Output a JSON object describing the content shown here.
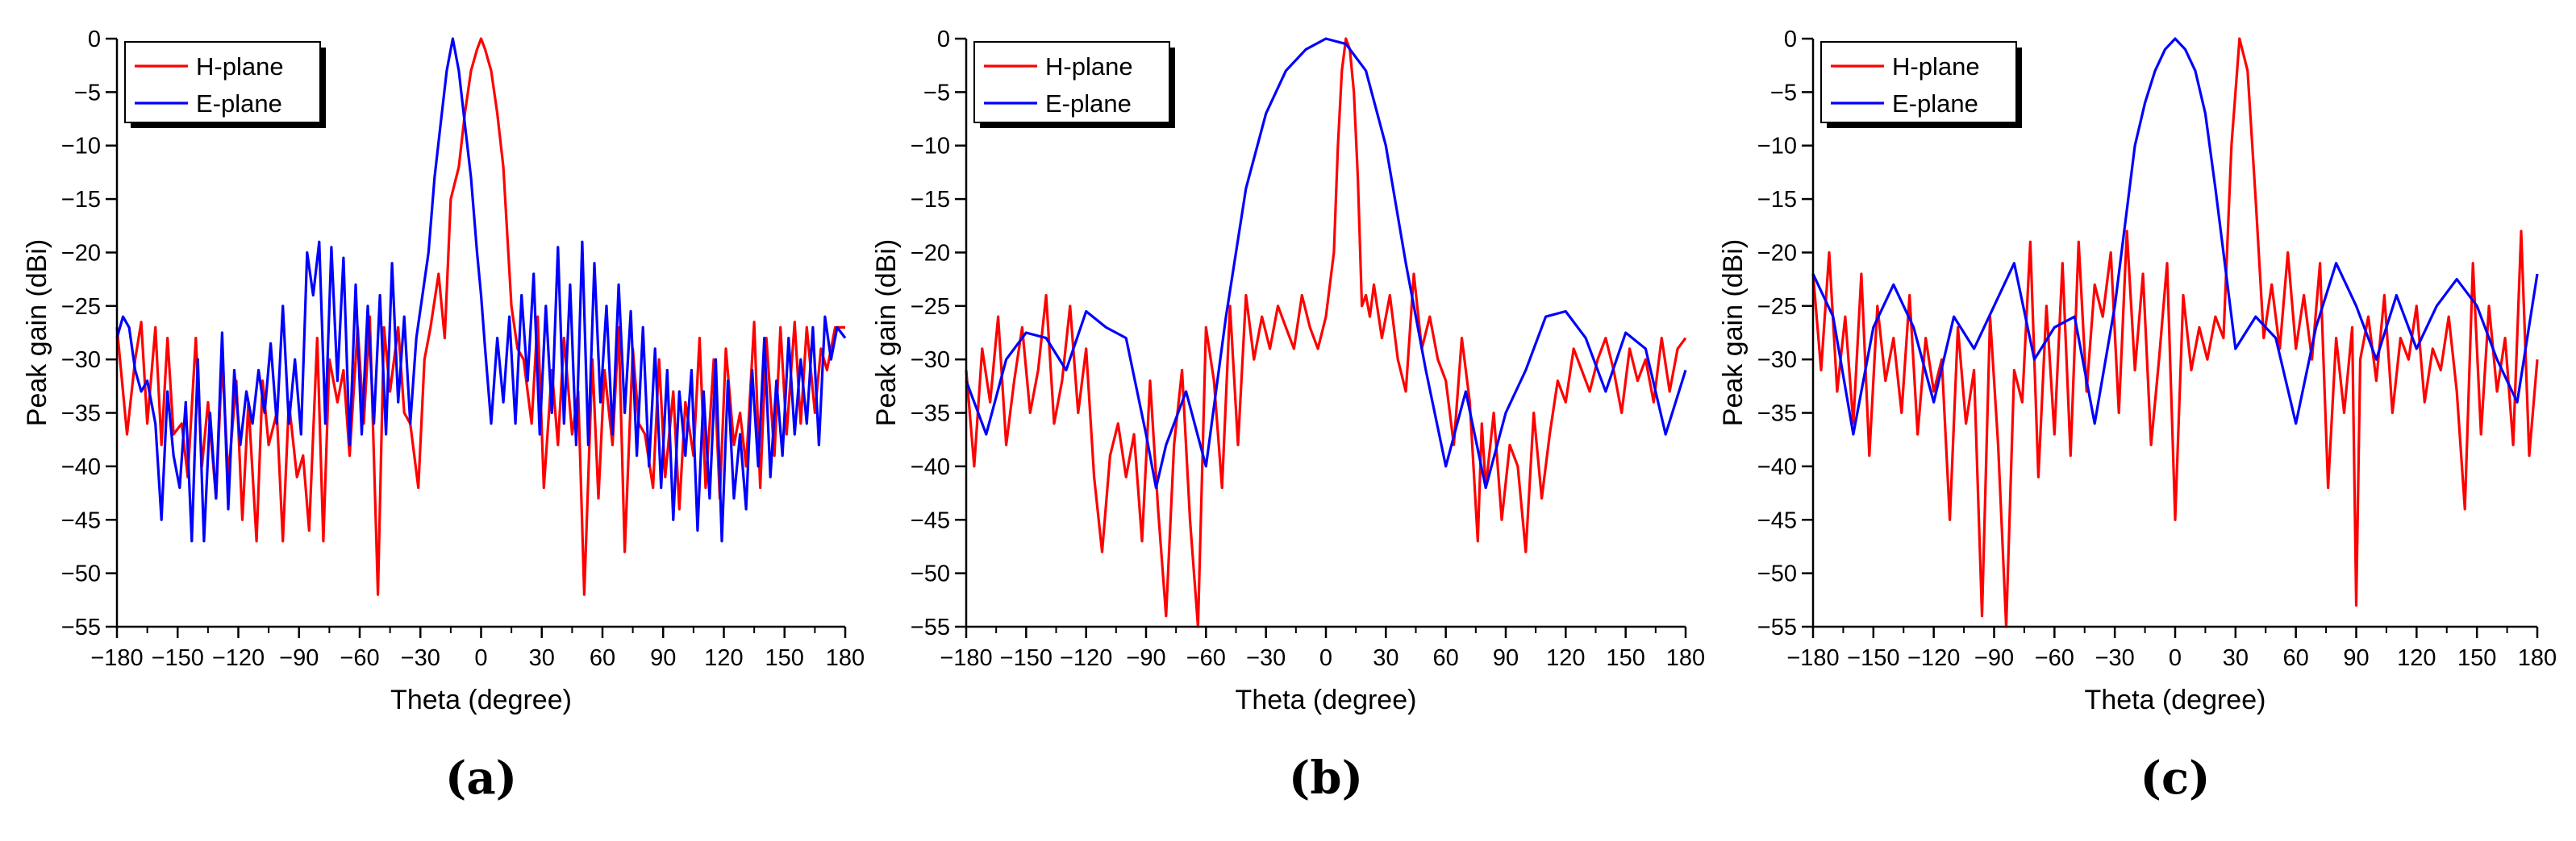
{
  "figure": {
    "panels": [
      "(a)",
      "(b)",
      "(c)"
    ],
    "x_ticks": [
      -180,
      -150,
      -120,
      -90,
      -60,
      -30,
      0,
      30,
      60,
      90,
      120,
      150,
      180
    ],
    "y_ticks": [
      0,
      -5,
      -10,
      -15,
      -20,
      -25,
      -30,
      -35,
      -40,
      -45,
      -50,
      -55
    ]
  },
  "chart_data": [
    {
      "type": "line",
      "panel_label": "(a)",
      "xlabel": "Theta (degree)",
      "ylabel": "Peak gain (dBi)",
      "xlim": [
        -180,
        180
      ],
      "ylim": [
        -55,
        0
      ],
      "legend_position": "top-left",
      "series": [
        {
          "name": "H-plane",
          "color": "#ff0000",
          "x": [
            -180,
            -175,
            -171,
            -168,
            -165,
            -161,
            -158,
            -155,
            -152,
            -148,
            -145,
            -141,
            -138,
            -135,
            -131,
            -128,
            -125,
            -121,
            -118,
            -115,
            -111,
            -108,
            -105,
            -101,
            -98,
            -95,
            -91,
            -88,
            -85,
            -81,
            -78,
            -75,
            -71,
            -68,
            -65,
            -61,
            -58,
            -55,
            -51,
            -48,
            -45,
            -41,
            -38,
            -35,
            -31,
            -28,
            -25,
            -21,
            -18,
            -15,
            -11,
            -8,
            -5,
            -2,
            0,
            2,
            5,
            8,
            11,
            15,
            18,
            21,
            25,
            28,
            31,
            35,
            38,
            41,
            45,
            48,
            51,
            55,
            58,
            61,
            65,
            68,
            71,
            75,
            78,
            81,
            85,
            88,
            91,
            95,
            98,
            101,
            105,
            108,
            111,
            115,
            118,
            121,
            125,
            128,
            131,
            135,
            138,
            141,
            145,
            148,
            151,
            155,
            158,
            161,
            165,
            168,
            171,
            175,
            180
          ],
          "values": [
            -27,
            -37,
            -30,
            -26.5,
            -36,
            -27,
            -38,
            -28,
            -37,
            -36,
            -41,
            -28,
            -40,
            -34,
            -43,
            -30,
            -41,
            -32,
            -45,
            -34,
            -47,
            -32,
            -38,
            -35,
            -47,
            -34,
            -41,
            -39,
            -46,
            -28,
            -47,
            -30,
            -34,
            -31,
            -39,
            -27,
            -36,
            -26,
            -52,
            -27,
            -33,
            -27,
            -35,
            -36,
            -42,
            -30,
            -27,
            -22,
            -28,
            -15,
            -12,
            -7,
            -3,
            -1,
            0,
            -1,
            -3,
            -7,
            -12,
            -25,
            -29,
            -30,
            -36,
            -26,
            -42,
            -31,
            -38,
            -28,
            -37,
            -33,
            -52,
            -30,
            -43,
            -31,
            -38,
            -27,
            -48,
            -29,
            -36,
            -37,
            -42,
            -30,
            -41,
            -33,
            -44,
            -34,
            -39,
            -28,
            -42,
            -30,
            -43,
            -29,
            -38,
            -35,
            -40,
            -26.5,
            -42,
            -28,
            -39,
            -27,
            -37,
            -26.5,
            -36,
            -27,
            -35,
            -29,
            -31,
            -27,
            -27
          ]
        },
        {
          "name": "E-plane",
          "color": "#0000ff",
          "x": [
            -180,
            -177,
            -174,
            -171,
            -168,
            -165,
            -161,
            -158,
            -155,
            -152,
            -149,
            -146,
            -143,
            -140,
            -137,
            -134,
            -131,
            -128,
            -125,
            -122,
            -119,
            -116,
            -113,
            -110,
            -107,
            -104,
            -101,
            -98,
            -95,
            -92,
            -89,
            -86,
            -83,
            -80,
            -77,
            -74,
            -71,
            -68,
            -65,
            -62,
            -59,
            -56,
            -53,
            -50,
            -47,
            -44,
            -41,
            -38,
            -35,
            -32,
            -29,
            -26,
            -23,
            -20,
            -17,
            -14,
            -11,
            -8,
            -5,
            -2,
            0,
            2,
            5,
            8,
            11,
            14,
            17,
            20,
            23,
            26,
            29,
            32,
            35,
            38,
            41,
            44,
            47,
            50,
            53,
            56,
            59,
            62,
            65,
            68,
            71,
            74,
            77,
            80,
            83,
            86,
            89,
            92,
            95,
            98,
            101,
            104,
            107,
            110,
            113,
            116,
            119,
            122,
            125,
            128,
            131,
            134,
            137,
            140,
            143,
            146,
            149,
            152,
            155,
            158,
            161,
            164,
            167,
            170,
            173,
            176,
            180
          ],
          "values": [
            -28,
            -26,
            -27,
            -31,
            -33,
            -32,
            -36,
            -45,
            -33,
            -39,
            -42,
            -34,
            -47,
            -30,
            -47,
            -35,
            -43,
            -27.5,
            -44,
            -31,
            -38,
            -33,
            -36,
            -31,
            -35,
            -28.5,
            -36,
            -25,
            -36,
            -30,
            -37,
            -20,
            -24,
            -19,
            -36,
            -19.5,
            -32,
            -20.5,
            -38,
            -23,
            -37,
            -25,
            -36,
            -24,
            -37,
            -21,
            -34,
            -26,
            -36,
            -28,
            -24,
            -20,
            -13,
            -8,
            -3,
            0,
            -3,
            -8,
            -13,
            -20,
            -24,
            -29,
            -36,
            -28,
            -34,
            -26,
            -36,
            -24,
            -32,
            -22,
            -37,
            -25,
            -35,
            -19.5,
            -36,
            -23,
            -38,
            -19,
            -38,
            -21,
            -34,
            -25,
            -37,
            -23,
            -35,
            -25.5,
            -39,
            -27,
            -40,
            -29,
            -42,
            -31,
            -45,
            -33,
            -39,
            -31,
            -46,
            -33,
            -43,
            -30,
            -47,
            -32,
            -43,
            -37,
            -44,
            -31,
            -40,
            -28,
            -41,
            -32,
            -39,
            -28,
            -37,
            -30,
            -36,
            -27,
            -38,
            -26,
            -30,
            -27,
            -28
          ]
        }
      ]
    },
    {
      "type": "line",
      "panel_label": "(b)",
      "xlabel": "Theta (degree)",
      "ylabel": "Peak gain (dBi)",
      "xlim": [
        -180,
        180
      ],
      "ylim": [
        -55,
        0
      ],
      "legend_position": "top-left",
      "series": [
        {
          "name": "H-plane",
          "color": "#ff0000",
          "x": [
            -180,
            -176,
            -172,
            -168,
            -164,
            -160,
            -156,
            -152,
            -148,
            -144,
            -140,
            -136,
            -132,
            -128,
            -124,
            -120,
            -116,
            -112,
            -108,
            -104,
            -100,
            -96,
            -92,
            -88,
            -84,
            -80,
            -76,
            -72,
            -68,
            -64,
            -60,
            -56,
            -52,
            -48,
            -44,
            -40,
            -36,
            -32,
            -28,
            -24,
            -20,
            -16,
            -12,
            -8,
            -4,
            0,
            4,
            6,
            8,
            10,
            12,
            14,
            16,
            18,
            20,
            22,
            24,
            28,
            32,
            36,
            40,
            44,
            48,
            52,
            56,
            60,
            64,
            68,
            72,
            76,
            78,
            80,
            84,
            88,
            92,
            96,
            100,
            104,
            108,
            112,
            116,
            120,
            124,
            128,
            132,
            136,
            140,
            144,
            148,
            152,
            156,
            160,
            164,
            168,
            172,
            176,
            180
          ],
          "values": [
            -31,
            -40,
            -29,
            -34,
            -26,
            -38,
            -32,
            -27,
            -35,
            -31,
            -24,
            -36,
            -32,
            -25,
            -35,
            -29,
            -41,
            -48,
            -39,
            -36,
            -41,
            -37,
            -47,
            -32,
            -44,
            -54,
            -38,
            -31,
            -45,
            -55,
            -27,
            -32,
            -42,
            -25,
            -38,
            -24,
            -30,
            -26,
            -29,
            -25,
            -27,
            -29,
            -24,
            -27,
            -29,
            -26,
            -20,
            -10,
            -3,
            0,
            -1,
            -5,
            -13,
            -25,
            -24,
            -26,
            -23,
            -28,
            -24,
            -30,
            -33,
            -22,
            -29,
            -26,
            -30,
            -32,
            -38,
            -28,
            -34,
            -47,
            -36,
            -42,
            -35,
            -45,
            -38,
            -40,
            -48,
            -35,
            -43,
            -37,
            -32,
            -34,
            -29,
            -31,
            -33,
            -30,
            -28,
            -31,
            -35,
            -29,
            -32,
            -30,
            -34,
            -28,
            -33,
            -29,
            -28
          ]
        },
        {
          "name": "E-plane",
          "color": "#0000ff",
          "x": [
            -180,
            -170,
            -160,
            -150,
            -140,
            -130,
            -120,
            -110,
            -100,
            -90,
            -85,
            -80,
            -70,
            -60,
            -50,
            -40,
            -30,
            -20,
            -10,
            0,
            10,
            20,
            30,
            40,
            50,
            60,
            70,
            80,
            90,
            100,
            110,
            120,
            130,
            140,
            150,
            160,
            170,
            180
          ],
          "values": [
            -32,
            -37,
            -30,
            -27.5,
            -28,
            -31,
            -25.5,
            -27,
            -28,
            -37,
            -42,
            -38,
            -33,
            -40,
            -26,
            -14,
            -7,
            -3,
            -1,
            0,
            -0.5,
            -3,
            -10,
            -21,
            -31,
            -40,
            -33,
            -42,
            -35,
            -31,
            -26,
            -25.5,
            -28,
            -33,
            -27.5,
            -29,
            -37,
            -31
          ]
        }
      ]
    },
    {
      "type": "line",
      "panel_label": "(c)",
      "xlabel": "Theta (degree)",
      "ylabel": "Peak gain (dBi)",
      "xlim": [
        -180,
        180
      ],
      "ylim": [
        -55,
        0
      ],
      "legend_position": "top-left",
      "series": [
        {
          "name": "H-plane",
          "color": "#ff0000",
          "x": [
            -180,
            -176,
            -172,
            -168,
            -164,
            -160,
            -156,
            -152,
            -148,
            -144,
            -140,
            -136,
            -132,
            -128,
            -124,
            -120,
            -116,
            -112,
            -108,
            -104,
            -100,
            -96,
            -92,
            -88,
            -84,
            -80,
            -76,
            -72,
            -68,
            -64,
            -60,
            -56,
            -52,
            -48,
            -44,
            -40,
            -36,
            -32,
            -28,
            -24,
            -20,
            -16,
            -12,
            -8,
            -4,
            0,
            4,
            8,
            12,
            16,
            20,
            24,
            28,
            32,
            36,
            40,
            44,
            48,
            52,
            56,
            60,
            64,
            68,
            72,
            76,
            80,
            84,
            88,
            90,
            92,
            96,
            100,
            104,
            108,
            112,
            116,
            120,
            124,
            128,
            132,
            136,
            140,
            144,
            148,
            152,
            156,
            160,
            164,
            168,
            172,
            176,
            180
          ],
          "values": [
            -22,
            -31,
            -20,
            -33,
            -26,
            -36,
            -22,
            -39,
            -25,
            -32,
            -28,
            -35,
            -24,
            -37,
            -28,
            -33,
            -30,
            -45,
            -27,
            -36,
            -31,
            -54,
            -26,
            -38,
            -55,
            -31,
            -34,
            -19,
            -41,
            -25,
            -37,
            -21,
            -39,
            -19,
            -33,
            -23,
            -26,
            -20,
            -35,
            -18,
            -31,
            -22,
            -38,
            -30,
            -21,
            -45,
            -24,
            -31,
            -27,
            -30,
            -26,
            -28,
            -10,
            0,
            -3,
            -15,
            -28,
            -23,
            -29,
            -20,
            -29,
            -24,
            -30,
            -21,
            -42,
            -28,
            -35,
            -27,
            -53,
            -30,
            -26,
            -32,
            -24,
            -35,
            -28,
            -30,
            -25,
            -34,
            -29,
            -31,
            -26,
            -33,
            -44,
            -21,
            -37,
            -25,
            -33,
            -28,
            -38,
            -18,
            -39,
            -30
          ]
        },
        {
          "name": "E-plane",
          "color": "#0000ff",
          "x": [
            -180,
            -170,
            -160,
            -150,
            -140,
            -130,
            -120,
            -110,
            -100,
            -90,
            -80,
            -70,
            -60,
            -50,
            -40,
            -30,
            -20,
            -15,
            -10,
            -5,
            0,
            5,
            10,
            15,
            20,
            30,
            40,
            50,
            60,
            70,
            80,
            90,
            100,
            110,
            120,
            130,
            140,
            150,
            160,
            170,
            180
          ],
          "values": [
            -22,
            -26,
            -37,
            -27,
            -23,
            -27,
            -34,
            -26,
            -29,
            -25,
            -21,
            -30,
            -27,
            -26,
            -36,
            -25,
            -10,
            -6,
            -3,
            -1,
            0,
            -1,
            -3,
            -7,
            -14,
            -29,
            -26,
            -28,
            -36,
            -27,
            -21,
            -25,
            -30,
            -24,
            -29,
            -25,
            -22.5,
            -25,
            -30,
            -34,
            -22
          ]
        }
      ]
    }
  ]
}
